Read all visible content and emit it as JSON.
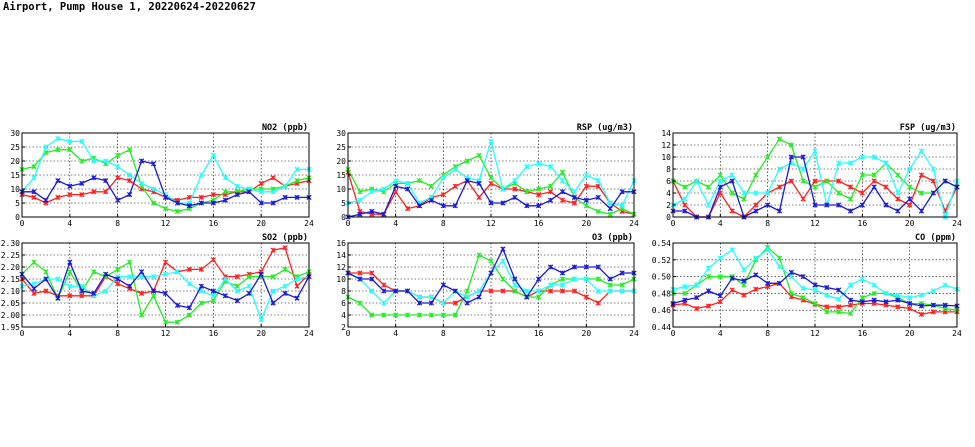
{
  "page": {
    "title": "Airport, Pump House 1, 20220624-20220627"
  },
  "series_colors": [
    "#ff2020",
    "#22ee22",
    "#22ffff",
    "#1a1ad8"
  ],
  "chart_data": [
    {
      "type": "line",
      "title": "NO2 (ppb)",
      "xlim": [
        0,
        24
      ],
      "xticks": [
        0,
        4,
        8,
        12,
        16,
        20,
        24
      ],
      "ylim": [
        0,
        30
      ],
      "yticks": [
        0,
        5,
        10,
        15,
        20,
        25,
        30
      ],
      "ytick_labels": [
        "0",
        "5",
        "10",
        "15",
        "20",
        "25",
        "30"
      ],
      "grid": true,
      "x": [
        0,
        1,
        2,
        3,
        4,
        5,
        6,
        7,
        8,
        9,
        10,
        11,
        12,
        13,
        14,
        15,
        16,
        17,
        18,
        19,
        20,
        21,
        22,
        23,
        24
      ],
      "series": [
        {
          "values": [
            8,
            7,
            5,
            7,
            8,
            8,
            9,
            9,
            14,
            13,
            10,
            9,
            7,
            6,
            7,
            7,
            8,
            8,
            9,
            9,
            12,
            14,
            11,
            12,
            13
          ]
        },
        {
          "values": [
            17,
            18,
            23,
            24,
            24,
            20,
            21,
            19,
            22,
            24,
            11,
            5,
            3,
            2,
            3,
            5,
            6,
            9,
            9,
            10,
            10,
            10,
            11,
            13,
            14
          ]
        },
        {
          "values": [
            9,
            14,
            25,
            28,
            27,
            27,
            20,
            20,
            18,
            15,
            12,
            10,
            8,
            5,
            5,
            15,
            22,
            14,
            11,
            10,
            9,
            9,
            11,
            17,
            17
          ]
        },
        {
          "values": [
            9,
            9,
            6,
            13,
            11,
            12,
            14,
            13,
            6,
            8,
            20,
            19,
            7,
            5,
            4,
            5,
            5,
            6,
            8,
            9,
            5,
            5,
            7,
            7,
            7
          ]
        }
      ]
    },
    {
      "type": "line",
      "title": "RSP (ug/m3)",
      "xlim": [
        0,
        24
      ],
      "xticks": [
        0,
        4,
        8,
        12,
        16,
        20,
        24
      ],
      "ylim": [
        0,
        30
      ],
      "yticks": [
        0,
        5,
        10,
        15,
        20,
        25,
        30
      ],
      "ytick_labels": [
        "0",
        "5",
        "10",
        "15",
        "20",
        "25",
        "30"
      ],
      "grid": true,
      "x": [
        0,
        1,
        2,
        3,
        4,
        5,
        6,
        7,
        8,
        9,
        10,
        11,
        12,
        13,
        14,
        15,
        16,
        17,
        18,
        19,
        20,
        21,
        22,
        23,
        24
      ],
      "series": [
        {
          "values": [
            16,
            2,
            1,
            1,
            9,
            3,
            4,
            7,
            8,
            11,
            13,
            7,
            12,
            10,
            10,
            9,
            8,
            9,
            6,
            5,
            11,
            11,
            5,
            2,
            1
          ]
        },
        {
          "values": [
            17,
            9,
            10,
            9,
            12,
            12,
            13,
            11,
            15,
            18,
            20,
            22,
            14,
            10,
            12,
            9,
            10,
            11,
            16,
            7,
            4,
            2,
            1,
            3,
            1
          ]
        },
        {
          "values": [
            5,
            6,
            9,
            10,
            13,
            12,
            5,
            7,
            14,
            17,
            14,
            13,
            27,
            10,
            13,
            18,
            19,
            18,
            13,
            9,
            15,
            13,
            5,
            4,
            13
          ]
        },
        {
          "values": [
            0,
            1,
            2,
            1,
            11,
            10,
            4,
            6,
            4,
            4,
            13,
            12,
            5,
            5,
            7,
            4,
            4,
            6,
            9,
            7,
            6,
            7,
            3,
            9,
            9
          ]
        }
      ]
    },
    {
      "type": "line",
      "title": "FSP (ug/m3)",
      "xlim": [
        0,
        24
      ],
      "xticks": [
        0,
        4,
        8,
        12,
        16,
        20,
        24
      ],
      "ylim": [
        0,
        14
      ],
      "yticks": [
        0,
        2,
        4,
        6,
        8,
        10,
        12,
        14
      ],
      "ytick_labels": [
        "0",
        "2",
        "4",
        "6",
        "8",
        "10",
        "12",
        "14"
      ],
      "grid": true,
      "x": [
        0,
        1,
        2,
        3,
        4,
        5,
        6,
        7,
        8,
        9,
        10,
        11,
        12,
        13,
        14,
        15,
        16,
        17,
        18,
        19,
        20,
        21,
        22,
        23,
        24
      ],
      "series": [
        {
          "values": [
            6,
            2,
            0,
            0,
            4,
            1,
            0,
            2,
            4,
            5,
            6,
            3,
            6,
            6,
            6,
            5,
            4,
            6,
            5,
            3,
            2,
            7,
            6,
            1,
            5
          ]
        },
        {
          "values": [
            6,
            5,
            6,
            5,
            7,
            4,
            3,
            7,
            10,
            13,
            12,
            6,
            5,
            6,
            4,
            3,
            7,
            7,
            9,
            7,
            5,
            4,
            4,
            6,
            5
          ]
        },
        {
          "values": [
            2,
            3,
            6,
            2,
            6,
            7,
            4,
            4,
            4,
            8,
            9,
            8,
            11,
            2,
            9,
            9,
            10,
            10,
            9,
            4,
            8,
            11,
            8,
            0,
            6
          ]
        },
        {
          "values": [
            1,
            1,
            0,
            0,
            5,
            6,
            0,
            1,
            2,
            1,
            10,
            10,
            2,
            2,
            2,
            1,
            2,
            5,
            2,
            1,
            3,
            1,
            4,
            6,
            5
          ]
        }
      ]
    },
    {
      "type": "line",
      "title": "SO2 (ppb)",
      "xlim": [
        0,
        24
      ],
      "xticks": [
        0,
        4,
        8,
        12,
        16,
        20,
        24
      ],
      "ylim": [
        1.95,
        2.3
      ],
      "yticks": [
        1.95,
        2.0,
        2.05,
        2.1,
        2.15,
        2.2,
        2.25,
        2.3
      ],
      "ytick_labels": [
        "1.95",
        "2.00",
        "2.05",
        "2.10",
        "2.15",
        "2.20",
        "2.25",
        "2.30"
      ],
      "grid": true,
      "x": [
        0,
        1,
        2,
        3,
        4,
        5,
        6,
        7,
        8,
        9,
        10,
        11,
        12,
        13,
        14,
        15,
        16,
        17,
        18,
        19,
        20,
        21,
        22,
        23,
        24
      ],
      "series": [
        {
          "values": [
            2.15,
            2.09,
            2.1,
            2.08,
            2.08,
            2.08,
            2.08,
            2.16,
            2.13,
            2.11,
            2.09,
            2.1,
            2.22,
            2.18,
            2.19,
            2.19,
            2.23,
            2.16,
            2.16,
            2.17,
            2.18,
            2.27,
            2.28,
            2.12,
            2.17
          ]
        },
        {
          "values": [
            2.17,
            2.22,
            2.18,
            2.07,
            2.18,
            2.1,
            2.18,
            2.16,
            2.19,
            2.22,
            2.0,
            2.08,
            1.97,
            1.97,
            2.0,
            2.05,
            2.06,
            2.14,
            2.12,
            2.16,
            2.16,
            2.16,
            2.19,
            2.16,
            2.18
          ]
        },
        {
          "values": [
            2.12,
            2.13,
            2.15,
            2.15,
            2.12,
            2.12,
            2.08,
            2.1,
            2.16,
            2.16,
            2.16,
            2.16,
            2.17,
            2.18,
            2.13,
            2.1,
            2.08,
            2.15,
            2.1,
            2.12,
            1.98,
            2.1,
            2.12,
            2.15,
            2.16
          ]
        },
        {
          "values": [
            2.17,
            2.11,
            2.15,
            2.07,
            2.22,
            2.1,
            2.09,
            2.17,
            2.15,
            2.12,
            2.18,
            2.1,
            2.09,
            2.04,
            2.03,
            2.12,
            2.1,
            2.08,
            2.06,
            2.09,
            2.17,
            2.05,
            2.09,
            2.07,
            2.16
          ]
        }
      ]
    },
    {
      "type": "line",
      "title": "O3 (ppb)",
      "xlim": [
        0,
        24
      ],
      "xticks": [
        0,
        4,
        8,
        12,
        16,
        20,
        24
      ],
      "ylim": [
        2,
        16
      ],
      "yticks": [
        2,
        4,
        6,
        8,
        10,
        12,
        14,
        16
      ],
      "ytick_labels": [
        "2",
        "4",
        "6",
        "8",
        "10",
        "12",
        "14",
        "16"
      ],
      "grid": true,
      "x": [
        0,
        1,
        2,
        3,
        4,
        5,
        6,
        7,
        8,
        9,
        10,
        11,
        12,
        13,
        14,
        15,
        16,
        17,
        18,
        19,
        20,
        21,
        22,
        23,
        24
      ],
      "series": [
        {
          "values": [
            11,
            11,
            11,
            9,
            8,
            8,
            7,
            7,
            6,
            6,
            7,
            8,
            8,
            8,
            8,
            7,
            8,
            8,
            8,
            8,
            7,
            6,
            8,
            8,
            8
          ]
        },
        {
          "values": [
            7,
            6,
            4,
            4,
            4,
            4,
            4,
            4,
            4,
            4,
            8,
            14,
            13,
            10,
            8,
            7,
            7,
            9,
            10,
            10,
            10,
            10,
            9,
            9,
            10
          ]
        },
        {
          "values": [
            11,
            10,
            8,
            6,
            8,
            8,
            7,
            7,
            6,
            8,
            7,
            8,
            11,
            13,
            9,
            8,
            8,
            9,
            9,
            10,
            10,
            8,
            8,
            8,
            8
          ]
        },
        {
          "values": [
            11,
            10,
            10,
            8,
            8,
            8,
            6,
            6,
            9,
            8,
            6,
            7,
            11,
            15,
            10,
            7,
            10,
            12,
            11,
            12,
            12,
            12,
            10,
            11,
            11
          ]
        }
      ]
    },
    {
      "type": "line",
      "title": "CO (ppm)",
      "xlim": [
        0,
        24
      ],
      "xticks": [
        0,
        4,
        8,
        12,
        16,
        20,
        24
      ],
      "ylim": [
        0.44,
        0.54
      ],
      "yticks": [
        0.44,
        0.46,
        0.48,
        0.5,
        0.52,
        0.54
      ],
      "ytick_labels": [
        "0.44",
        "0.46",
        "0.48",
        "0.50",
        "0.52",
        "0.54"
      ],
      "grid": true,
      "x": [
        0,
        1,
        2,
        3,
        4,
        5,
        6,
        7,
        8,
        9,
        10,
        11,
        12,
        13,
        14,
        15,
        16,
        17,
        18,
        19,
        20,
        21,
        22,
        23,
        24
      ],
      "series": [
        {
          "values": [
            0.466,
            0.468,
            0.462,
            0.465,
            0.47,
            0.484,
            0.478,
            0.485,
            0.488,
            0.492,
            0.476,
            0.472,
            0.467,
            0.464,
            0.464,
            0.466,
            0.468,
            0.468,
            0.466,
            0.464,
            0.462,
            0.455,
            0.458,
            0.458,
            0.458
          ]
        },
        {
          "values": [
            0.48,
            0.48,
            0.49,
            0.5,
            0.5,
            0.5,
            0.49,
            0.52,
            0.535,
            0.522,
            0.48,
            0.475,
            0.468,
            0.458,
            0.458,
            0.456,
            0.475,
            0.48,
            0.48,
            0.475,
            0.468,
            0.468,
            0.466,
            0.462,
            0.46
          ]
        },
        {
          "values": [
            0.485,
            0.488,
            0.49,
            0.51,
            0.522,
            0.532,
            0.508,
            0.522,
            0.532,
            0.512,
            0.5,
            0.486,
            0.484,
            0.478,
            0.473,
            0.49,
            0.497,
            0.49,
            0.48,
            0.478,
            0.475,
            0.478,
            0.483,
            0.49,
            0.485
          ]
        },
        {
          "values": [
            0.468,
            0.472,
            0.475,
            0.483,
            0.477,
            0.498,
            0.495,
            0.502,
            0.492,
            0.492,
            0.505,
            0.5,
            0.49,
            0.487,
            0.484,
            0.472,
            0.47,
            0.472,
            0.47,
            0.472,
            0.468,
            0.465,
            0.466,
            0.466,
            0.465
          ]
        }
      ]
    }
  ]
}
